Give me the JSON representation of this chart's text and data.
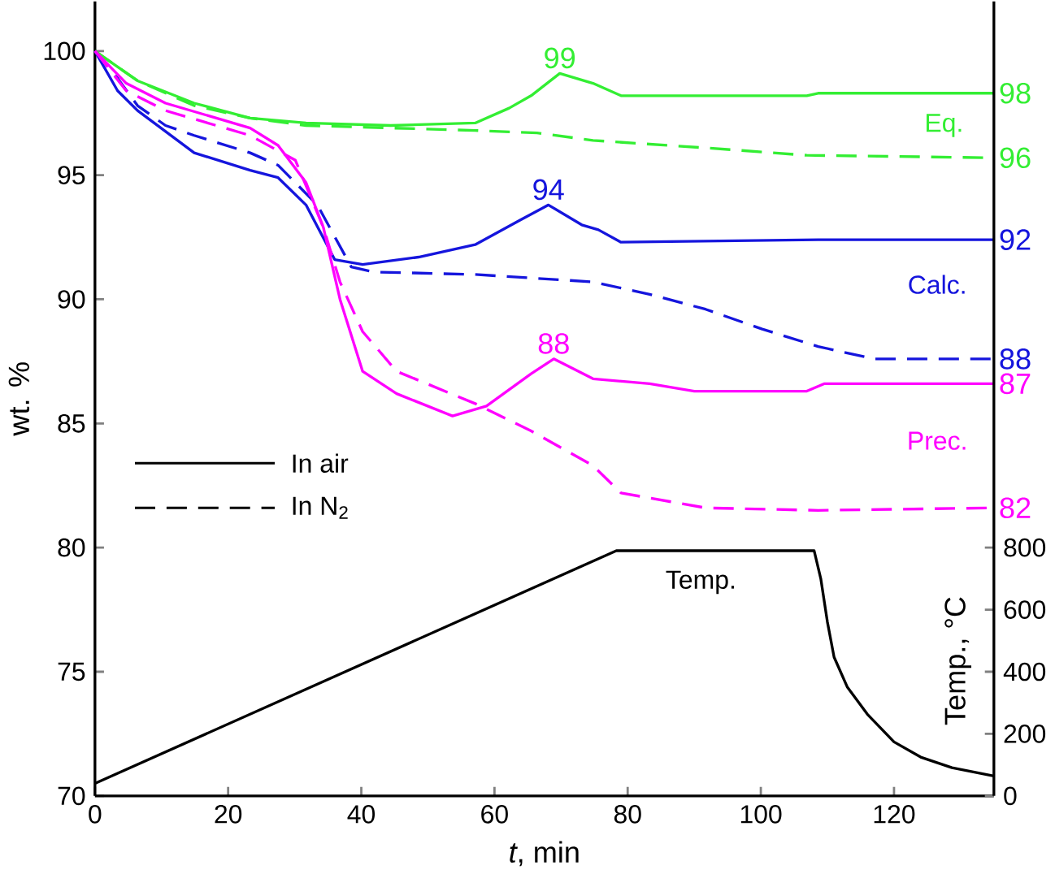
{
  "chart_data": {
    "type": "line",
    "xlabel": "*t*, min",
    "ylabel": "wt. %",
    "y2label": "Temp., °C",
    "xlim": [
      0,
      135
    ],
    "ylim": [
      70,
      102
    ],
    "y2lim": [
      0,
      2560
    ],
    "xticks": [
      0,
      20,
      40,
      60,
      80,
      100,
      120
    ],
    "yticks": [
      70,
      75,
      80,
      85,
      90,
      95,
      100
    ],
    "y2ticks": [
      0,
      200,
      400,
      600,
      800
    ],
    "series": [
      {
        "color": "#33ee33",
        "line_style": "solid",
        "x": [
          0,
          6.4,
          14.9,
          23.3,
          31.7,
          44.4,
          57.1,
          62.2,
          65.5,
          69.8,
          74.8,
          79,
          106.9,
          108.6,
          135
        ],
        "values": [
          100,
          98.8,
          97.9,
          97.3,
          97.1,
          97.0,
          97.1,
          97.7,
          98.2,
          99.1,
          98.7,
          98.2,
          98.2,
          98.3,
          98.3
        ]
      },
      {
        "color": "#33ee33",
        "line_style": "dashed",
        "x": [
          0,
          6.4,
          14.9,
          23.3,
          31.7,
          44.4,
          57.1,
          66.4,
          74.8,
          91.7,
          106.9,
          135
        ],
        "values": [
          100,
          98.8,
          97.8,
          97.3,
          97.0,
          96.9,
          96.8,
          96.7,
          96.4,
          96.1,
          95.8,
          95.7
        ]
      },
      {
        "color": "#1515dd",
        "line_style": "solid",
        "x": [
          0,
          3.4,
          6.4,
          14.9,
          23.3,
          27.5,
          31.7,
          36,
          40.2,
          48.6,
          57.1,
          63.9,
          68.1,
          73.1,
          75.6,
          79,
          108.6,
          135
        ],
        "values": [
          100,
          98.4,
          97.6,
          95.9,
          95.2,
          94.9,
          93.8,
          91.6,
          91.4,
          91.7,
          92.2,
          93.2,
          93.8,
          93.0,
          92.8,
          92.3,
          92.4,
          92.4
        ]
      },
      {
        "color": "#1515dd",
        "line_style": "dashed",
        "x": [
          0,
          3.4,
          6.4,
          10.6,
          14.9,
          23.3,
          27.5,
          33.4,
          38.5,
          41.9,
          57.1,
          74.8,
          83.3,
          91.7,
          100.2,
          108.6,
          117,
          135
        ],
        "values": [
          100,
          98.9,
          97.8,
          97.0,
          96.6,
          95.9,
          95.4,
          93.8,
          91.3,
          91.1,
          91.0,
          90.7,
          90.2,
          89.6,
          88.8,
          88.1,
          87.6,
          87.6
        ]
      },
      {
        "color": "#ff00ff",
        "line_style": "solid",
        "x": [
          0,
          4.7,
          10.6,
          23.3,
          27.5,
          31.7,
          34.3,
          36.8,
          40.2,
          45.3,
          53.7,
          58.8,
          65.5,
          68.9,
          74.8,
          83.3,
          90,
          106.9,
          109.5,
          135
        ],
        "values": [
          100,
          98.7,
          97.9,
          96.9,
          96.2,
          94.7,
          92.9,
          90.0,
          87.1,
          86.2,
          85.3,
          85.7,
          87.0,
          87.6,
          86.8,
          86.6,
          86.3,
          86.3,
          86.6,
          86.6
        ]
      },
      {
        "color": "#ff00ff",
        "line_style": "dashed",
        "x": [
          0,
          4.7,
          10.6,
          23.3,
          30.1,
          34.3,
          36.8,
          40.2,
          45.3,
          57.1,
          65.5,
          74.8,
          79,
          91.7,
          108.6,
          135
        ],
        "values": [
          100,
          98.4,
          97.6,
          96.6,
          95.6,
          92.9,
          90.7,
          88.7,
          87.1,
          85.8,
          84.7,
          83.3,
          82.2,
          81.6,
          81.5,
          81.6
        ]
      },
      {
        "color": "#000000",
        "line_style": "solid",
        "axis": "y2",
        "x": [
          0,
          78.3,
          108,
          109,
          110,
          111,
          113,
          116,
          120,
          124,
          128.7,
          135
        ],
        "values": [
          40,
          790,
          790,
          700,
          560,
          447,
          350,
          263,
          174,
          125,
          91,
          64
        ]
      }
    ],
    "annotations": [
      {
        "text": "99",
        "x": 69.8,
        "y": 99.1
      },
      {
        "text": "94",
        "x": 68.1,
        "y": 93.8
      },
      {
        "text": "88",
        "x": 68.9,
        "y": 87.6
      },
      {
        "text": "98",
        "x": 135,
        "y": 98.3
      },
      {
        "text": "96",
        "x": 135,
        "y": 95.7
      },
      {
        "text": "92",
        "x": 135,
        "y": 92.4
      },
      {
        "text": "88",
        "x": 135,
        "y": 87.6
      },
      {
        "text": "87",
        "x": 135,
        "y": 86.6
      },
      {
        "text": "82",
        "x": 135,
        "y": 81.6
      },
      "Eq.",
      "Calc.",
      "Prec.",
      "In air",
      "In N$_{2}$",
      "Temp."
    ]
  }
}
